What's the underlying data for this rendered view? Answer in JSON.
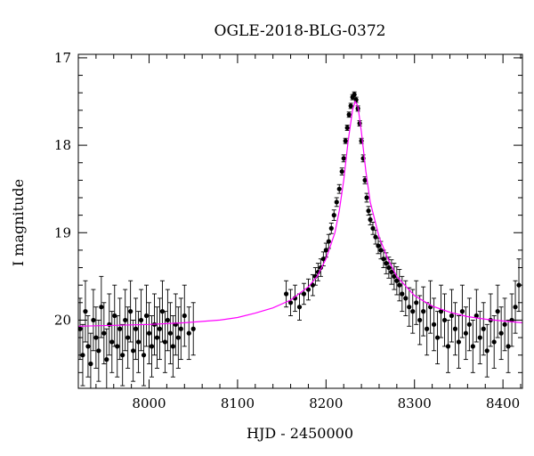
{
  "chart_data": {
    "type": "scatter",
    "title": "OGLE-2018-BLG-0372",
    "xlabel": "HJD - 2450000",
    "ylabel": "I magnitude",
    "xlim": [
      7920,
      8422
    ],
    "ylim": [
      20.78,
      16.96
    ],
    "y_inverted": true,
    "x_ticks": [
      8000,
      8100,
      8200,
      8300,
      8400
    ],
    "y_ticks": [
      17,
      18,
      19,
      20
    ],
    "grid": false,
    "colors": {
      "data": "#000000",
      "model": "#ff00ff"
    },
    "model": {
      "description_visible": false,
      "x": [
        7920,
        7960,
        8000,
        8040,
        8080,
        8100,
        8120,
        8140,
        8160,
        8180,
        8190,
        8200,
        8210,
        8215,
        8220,
        8225,
        8230,
        8233,
        8236,
        8240,
        8245,
        8250,
        8260,
        8270,
        8280,
        8300,
        8320,
        8340,
        8360,
        8380,
        8400,
        8422
      ],
      "y": [
        20.07,
        20.06,
        20.05,
        20.03,
        20.0,
        19.97,
        19.92,
        19.86,
        19.77,
        19.62,
        19.5,
        19.3,
        19.0,
        18.75,
        18.4,
        17.95,
        17.6,
        17.5,
        17.55,
        17.85,
        18.3,
        18.65,
        19.05,
        19.3,
        19.5,
        19.72,
        19.84,
        19.91,
        19.96,
        19.99,
        20.01,
        20.03
      ]
    },
    "series": [
      {
        "x": [
          7922,
          7925,
          7928,
          7931,
          7934,
          7937,
          7940,
          7943,
          7946,
          7949,
          7952,
          7955,
          7958,
          7961,
          7964,
          7967,
          7970,
          7973,
          7976,
          7979,
          7982,
          7985,
          7988,
          7991,
          7994,
          7997,
          8000,
          8003,
          8006,
          8009,
          8012,
          8015,
          8018,
          8021,
          8024,
          8027,
          8030,
          8033,
          8036,
          8040,
          8045,
          8050,
          8155,
          8160,
          8165,
          8170,
          8175,
          8180,
          8185,
          8188,
          8191,
          8194,
          8197,
          8200,
          8203,
          8206,
          8209,
          8212,
          8215,
          8218,
          8220,
          8222,
          8224,
          8226,
          8228,
          8230,
          8232,
          8234,
          8236,
          8238,
          8240,
          8242,
          8244,
          8246,
          8248,
          8250,
          8253,
          8256,
          8259,
          8262,
          8265,
          8268,
          8271,
          8274,
          8277,
          8280,
          8283,
          8286,
          8290,
          8294,
          8298,
          8302,
          8306,
          8310,
          8314,
          8318,
          8322,
          8326,
          8330,
          8334,
          8338,
          8342,
          8346,
          8350,
          8354,
          8358,
          8362,
          8366,
          8370,
          8374,
          8378,
          8382,
          8386,
          8390,
          8394,
          8398,
          8402,
          8406,
          8410,
          8414,
          8418
        ],
        "y": [
          20.1,
          20.4,
          19.9,
          20.3,
          20.5,
          20.0,
          20.2,
          20.35,
          19.85,
          20.15,
          20.45,
          20.05,
          20.25,
          19.95,
          20.3,
          20.1,
          20.4,
          20.0,
          20.2,
          19.9,
          20.35,
          20.1,
          20.25,
          20.0,
          20.4,
          19.95,
          20.15,
          20.3,
          20.05,
          20.2,
          20.1,
          19.9,
          20.25,
          20.0,
          20.15,
          20.3,
          20.05,
          20.2,
          20.1,
          19.95,
          20.15,
          20.1,
          19.7,
          19.8,
          19.75,
          19.85,
          19.7,
          19.65,
          19.6,
          19.5,
          19.45,
          19.4,
          19.3,
          19.2,
          19.1,
          18.95,
          18.8,
          18.65,
          18.5,
          18.3,
          18.15,
          17.95,
          17.8,
          17.65,
          17.55,
          17.45,
          17.42,
          17.48,
          17.58,
          17.75,
          17.95,
          18.15,
          18.4,
          18.6,
          18.75,
          18.85,
          18.95,
          19.05,
          19.15,
          19.2,
          19.3,
          19.35,
          19.4,
          19.45,
          19.5,
          19.55,
          19.6,
          19.7,
          19.75,
          19.85,
          19.9,
          19.8,
          20.0,
          19.9,
          20.1,
          19.85,
          20.05,
          20.2,
          19.9,
          20.0,
          20.3,
          19.95,
          20.1,
          20.25,
          19.9,
          20.15,
          20.05,
          20.3,
          19.95,
          20.2,
          20.1,
          20.35,
          20.0,
          20.25,
          19.9,
          20.15,
          20.05,
          20.3,
          20.0,
          19.85,
          19.6
        ],
        "yerr": [
          0.35,
          0.35,
          0.35,
          0.35,
          0.35,
          0.35,
          0.35,
          0.35,
          0.35,
          0.35,
          0.35,
          0.35,
          0.35,
          0.35,
          0.35,
          0.35,
          0.35,
          0.35,
          0.35,
          0.35,
          0.35,
          0.35,
          0.35,
          0.35,
          0.35,
          0.35,
          0.35,
          0.35,
          0.35,
          0.35,
          0.35,
          0.35,
          0.35,
          0.35,
          0.35,
          0.35,
          0.35,
          0.35,
          0.35,
          0.35,
          0.3,
          0.3,
          0.15,
          0.15,
          0.15,
          0.15,
          0.12,
          0.12,
          0.12,
          0.1,
          0.1,
          0.1,
          0.08,
          0.08,
          0.08,
          0.06,
          0.06,
          0.05,
          0.05,
          0.04,
          0.04,
          0.03,
          0.03,
          0.03,
          0.03,
          0.03,
          0.03,
          0.03,
          0.03,
          0.03,
          0.03,
          0.04,
          0.04,
          0.05,
          0.05,
          0.06,
          0.07,
          0.08,
          0.09,
          0.1,
          0.1,
          0.12,
          0.12,
          0.14,
          0.15,
          0.16,
          0.18,
          0.2,
          0.2,
          0.22,
          0.25,
          0.25,
          0.28,
          0.28,
          0.3,
          0.3,
          0.3,
          0.3,
          0.3,
          0.3,
          0.3,
          0.3,
          0.3,
          0.3,
          0.3,
          0.3,
          0.3,
          0.3,
          0.3,
          0.3,
          0.3,
          0.3,
          0.3,
          0.3,
          0.3,
          0.3,
          0.3,
          0.3,
          0.3,
          0.3,
          0.3
        ]
      }
    ]
  }
}
